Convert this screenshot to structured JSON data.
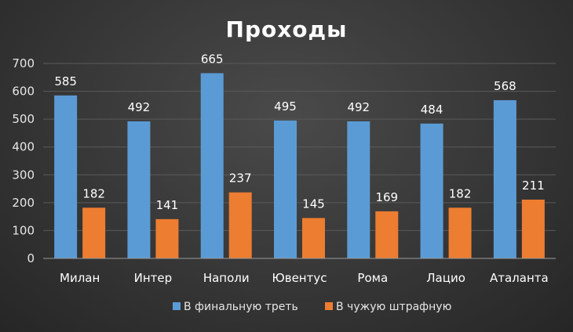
{
  "chart_data": {
    "type": "bar",
    "title": "Проходы",
    "categories": [
      "Милан",
      "Интер",
      "Наполи",
      "Ювентус",
      "Рома",
      "Лацио",
      "Аталанта"
    ],
    "series": [
      {
        "name": "В финальную треть",
        "values": [
          585,
          492,
          665,
          495,
          492,
          484,
          568
        ],
        "color": "#5b9bd5"
      },
      {
        "name": "В чужую штрафную",
        "values": [
          182,
          141,
          237,
          145,
          169,
          182,
          211
        ],
        "color": "#ed7d31"
      }
    ],
    "ylim": [
      0,
      700
    ],
    "yticks": [
      0,
      100,
      200,
      300,
      400,
      500,
      600,
      700
    ],
    "grid": true,
    "legend": "bottom"
  }
}
